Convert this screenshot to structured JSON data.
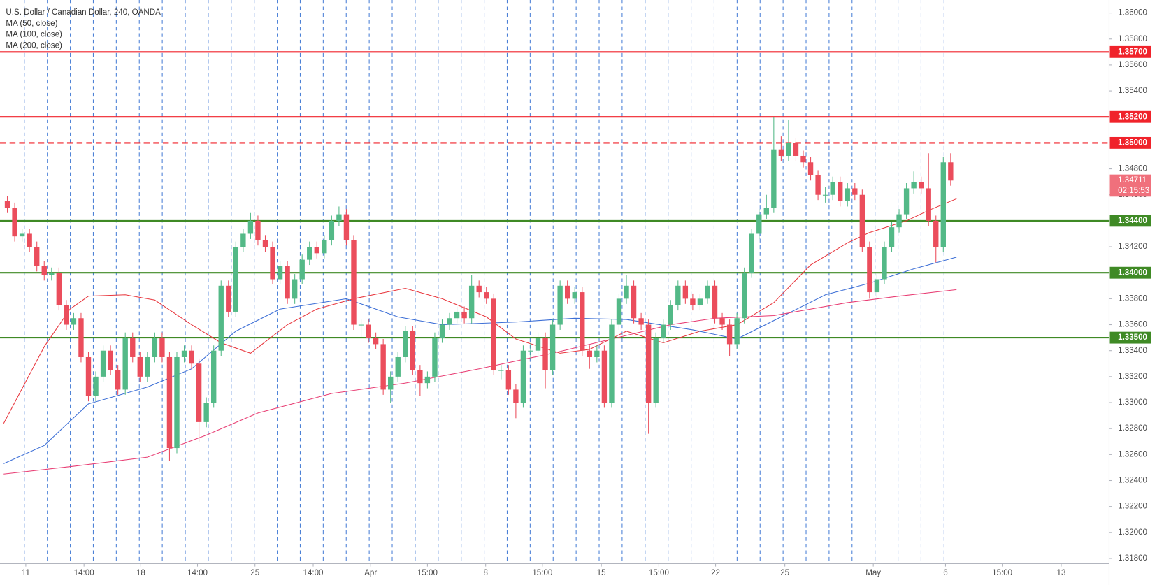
{
  "chart_data": {
    "type": "candlestick",
    "title": "U.S. Dollar / Canadian Dollar, 240, OANDA",
    "up_color": "#53b987",
    "down_color": "#eb4d5c",
    "xlim": [
      -1,
      149.5
    ],
    "ylim": [
      1.3176,
      1.361
    ],
    "xticks": [
      {
        "value": 2.5,
        "label": "11"
      },
      {
        "value": 10.4,
        "label": "14:00"
      },
      {
        "value": 18.1,
        "label": "18"
      },
      {
        "value": 25.8,
        "label": "14:00"
      },
      {
        "value": 33.6,
        "label": "25"
      },
      {
        "value": 41.5,
        "label": "14:00"
      },
      {
        "value": 49.3,
        "label": "Apr"
      },
      {
        "value": 57.0,
        "label": "15:00"
      },
      {
        "value": 64.9,
        "label": "8"
      },
      {
        "value": 72.6,
        "label": "15:00"
      },
      {
        "value": 80.6,
        "label": "15"
      },
      {
        "value": 88.4,
        "label": "15:00"
      },
      {
        "value": 96.1,
        "label": "22"
      },
      {
        "value": 105.5,
        "label": "25"
      },
      {
        "value": 117.5,
        "label": "May"
      },
      {
        "value": 127.3,
        "label": "6"
      },
      {
        "value": 135,
        "label": "15:00"
      },
      {
        "value": 143,
        "label": "13"
      }
    ],
    "yticks": [
      {
        "value": 1.318,
        "label": "1.31800"
      },
      {
        "value": 1.32,
        "label": "1.32000"
      },
      {
        "value": 1.322,
        "label": "1.32200"
      },
      {
        "value": 1.324,
        "label": "1.32400"
      },
      {
        "value": 1.326,
        "label": "1.32600"
      },
      {
        "value": 1.328,
        "label": "1.32800"
      },
      {
        "value": 1.33,
        "label": "1.33000"
      },
      {
        "value": 1.332,
        "label": "1.33200"
      },
      {
        "value": 1.334,
        "label": "1.33400"
      },
      {
        "value": 1.336,
        "label": "1.33600"
      },
      {
        "value": 1.338,
        "label": "1.33800"
      },
      {
        "value": 1.34,
        "label": "1.34000"
      },
      {
        "value": 1.342,
        "label": "1.34200"
      },
      {
        "value": 1.344,
        "label": "1.34400"
      },
      {
        "value": 1.346,
        "label": "1.34600"
      },
      {
        "value": 1.348,
        "label": "1.34800"
      },
      {
        "value": 1.35,
        "label": "1.35000"
      },
      {
        "value": 1.352,
        "label": "1.35200"
      },
      {
        "value": 1.354,
        "label": "1.35400"
      },
      {
        "value": 1.356,
        "label": "1.35600"
      },
      {
        "value": 1.358,
        "label": "1.35800"
      },
      {
        "value": 1.36,
        "label": "1.36000"
      }
    ],
    "candles": {
      "open": [
        1.3455,
        1.345,
        1.3428,
        1.343,
        1.342,
        1.3405,
        1.3398,
        1.34,
        1.3375,
        1.336,
        1.3365,
        1.3335,
        1.3305,
        1.332,
        1.334,
        1.3325,
        1.331,
        1.335,
        1.3335,
        1.332,
        1.3335,
        1.335,
        1.3335,
        1.3265,
        1.3335,
        1.334,
        1.333,
        1.3285,
        1.33,
        1.334,
        1.339,
        1.337,
        1.342,
        1.343,
        1.344,
        1.3425,
        1.342,
        1.3395,
        1.3405,
        1.338,
        1.3395,
        1.341,
        1.342,
        1.3415,
        1.3425,
        1.344,
        1.3445,
        1.3425,
        1.336,
        1.336,
        1.335,
        1.3345,
        1.331,
        1.332,
        1.3335,
        1.3355,
        1.3325,
        1.3315,
        1.332,
        1.335,
        1.336,
        1.3365,
        1.337,
        1.3365,
        1.339,
        1.3385,
        1.338,
        1.3325,
        1.3325,
        1.331,
        1.33,
        1.334,
        1.334,
        1.335,
        1.3325,
        1.336,
        1.339,
        1.338,
        1.3385,
        1.334,
        1.3335,
        1.334,
        1.33,
        1.336,
        1.338,
        1.339,
        1.3365,
        1.336,
        1.33,
        1.335,
        1.336,
        1.3375,
        1.339,
        1.338,
        1.3375,
        1.338,
        1.339,
        1.3365,
        1.336,
        1.3345,
        1.3365,
        1.34,
        1.343,
        1.3445,
        1.345,
        1.3495,
        1.349,
        1.35,
        1.349,
        1.3485,
        1.3475,
        1.346,
        1.346,
        1.347,
        1.3455,
        1.3465,
        1.346,
        1.342,
        1.3385,
        1.3395,
        1.342,
        1.3435,
        1.3445,
        1.3465,
        1.347,
        1.3465,
        1.344,
        1.342,
        1.3485
      ],
      "high": [
        1.3459,
        1.3454,
        1.3434,
        1.3434,
        1.3424,
        1.3409,
        1.3404,
        1.3404,
        1.3379,
        1.3369,
        1.3369,
        1.3339,
        1.3324,
        1.3344,
        1.3344,
        1.3329,
        1.3354,
        1.3354,
        1.3339,
        1.3339,
        1.3354,
        1.3354,
        1.3339,
        1.3339,
        1.3344,
        1.3344,
        1.3334,
        1.3304,
        1.3344,
        1.3394,
        1.3394,
        1.3424,
        1.3434,
        1.3446,
        1.3444,
        1.3429,
        1.3424,
        1.3409,
        1.3409,
        1.3399,
        1.3414,
        1.3424,
        1.3424,
        1.3429,
        1.3444,
        1.3451,
        1.3449,
        1.3429,
        1.3364,
        1.3364,
        1.3354,
        1.3349,
        1.3324,
        1.3339,
        1.3359,
        1.3359,
        1.3329,
        1.3324,
        1.3354,
        1.3364,
        1.3369,
        1.3374,
        1.3374,
        1.3398,
        1.3394,
        1.3389,
        1.3384,
        1.3329,
        1.3329,
        1.3314,
        1.3344,
        1.3346,
        1.3354,
        1.3354,
        1.3364,
        1.3394,
        1.3394,
        1.3389,
        1.3389,
        1.3344,
        1.3344,
        1.3344,
        1.3364,
        1.3384,
        1.3398,
        1.3394,
        1.3369,
        1.3364,
        1.3354,
        1.3364,
        1.3379,
        1.3394,
        1.3394,
        1.3384,
        1.3384,
        1.3394,
        1.3394,
        1.3369,
        1.3364,
        1.3369,
        1.3404,
        1.3434,
        1.3449,
        1.346,
        1.352,
        1.3505,
        1.3518,
        1.3504,
        1.3494,
        1.3489,
        1.3479,
        1.3466,
        1.3474,
        1.3474,
        1.3469,
        1.3469,
        1.3464,
        1.3424,
        1.3399,
        1.3424,
        1.3439,
        1.3449,
        1.3469,
        1.3478,
        1.3474,
        1.3492,
        1.3444,
        1.3489,
        1.3492
      ],
      "low": [
        1.3446,
        1.3424,
        1.3424,
        1.3416,
        1.3401,
        1.3394,
        1.3394,
        1.3371,
        1.3356,
        1.3356,
        1.3331,
        1.3301,
        1.3301,
        1.3316,
        1.3321,
        1.3306,
        1.3306,
        1.3331,
        1.3316,
        1.3316,
        1.3331,
        1.3331,
        1.3255,
        1.3261,
        1.3331,
        1.3326,
        1.327,
        1.3281,
        1.3296,
        1.3336,
        1.3366,
        1.3366,
        1.3416,
        1.3426,
        1.3421,
        1.3416,
        1.3391,
        1.3391,
        1.3376,
        1.3376,
        1.3391,
        1.3406,
        1.3411,
        1.3411,
        1.3421,
        1.3436,
        1.3421,
        1.3356,
        1.335,
        1.3346,
        1.3341,
        1.3306,
        1.33,
        1.3316,
        1.3331,
        1.3321,
        1.3305,
        1.3311,
        1.3316,
        1.3346,
        1.3356,
        1.3361,
        1.3361,
        1.3361,
        1.3381,
        1.3376,
        1.3321,
        1.3318,
        1.3306,
        1.3288,
        1.3296,
        1.3334,
        1.3336,
        1.3311,
        1.3321,
        1.3356,
        1.3376,
        1.3376,
        1.3336,
        1.3326,
        1.3331,
        1.3296,
        1.3296,
        1.3356,
        1.3376,
        1.3361,
        1.3356,
        1.3276,
        1.3296,
        1.3346,
        1.3356,
        1.3371,
        1.3376,
        1.3371,
        1.3371,
        1.3376,
        1.3361,
        1.3356,
        1.3336,
        1.3341,
        1.3361,
        1.3396,
        1.3426,
        1.3441,
        1.3446,
        1.3486,
        1.3486,
        1.3486,
        1.3481,
        1.3471,
        1.3456,
        1.3454,
        1.3456,
        1.3451,
        1.3451,
        1.3456,
        1.3416,
        1.338,
        1.3381,
        1.3391,
        1.3416,
        1.3431,
        1.3441,
        1.3461,
        1.3461,
        1.3436,
        1.3408,
        1.3416,
        1.3467
      ],
      "close": [
        1.345,
        1.3428,
        1.343,
        1.342,
        1.3405,
        1.3398,
        1.34,
        1.3375,
        1.336,
        1.3365,
        1.3335,
        1.3305,
        1.332,
        1.334,
        1.3325,
        1.331,
        1.335,
        1.3335,
        1.332,
        1.3335,
        1.335,
        1.3335,
        1.3265,
        1.3335,
        1.334,
        1.333,
        1.3285,
        1.33,
        1.334,
        1.339,
        1.337,
        1.342,
        1.343,
        1.344,
        1.3425,
        1.342,
        1.3395,
        1.3405,
        1.338,
        1.3395,
        1.341,
        1.342,
        1.3415,
        1.3425,
        1.344,
        1.3445,
        1.3425,
        1.336,
        1.336,
        1.335,
        1.3345,
        1.331,
        1.332,
        1.3335,
        1.3355,
        1.3325,
        1.3315,
        1.332,
        1.335,
        1.336,
        1.3365,
        1.337,
        1.3365,
        1.339,
        1.3385,
        1.338,
        1.3325,
        1.3325,
        1.331,
        1.33,
        1.334,
        1.334,
        1.335,
        1.3325,
        1.336,
        1.339,
        1.338,
        1.3385,
        1.334,
        1.3335,
        1.334,
        1.33,
        1.336,
        1.338,
        1.339,
        1.3365,
        1.336,
        1.33,
        1.335,
        1.336,
        1.3375,
        1.339,
        1.338,
        1.3375,
        1.338,
        1.339,
        1.3365,
        1.336,
        1.3345,
        1.3365,
        1.34,
        1.343,
        1.3445,
        1.345,
        1.3495,
        1.349,
        1.35,
        1.349,
        1.3485,
        1.3475,
        1.346,
        1.346,
        1.347,
        1.3455,
        1.3465,
        1.346,
        1.342,
        1.3385,
        1.3395,
        1.342,
        1.3435,
        1.3445,
        1.3465,
        1.347,
        1.3465,
        1.344,
        1.342,
        1.3485,
        1.3471
      ]
    },
    "series": [
      {
        "name": "MA (50, close)",
        "color": "#e8363d",
        "x": [
          -0.5,
          5,
          8.5,
          11,
          16,
          20,
          25,
          29,
          33,
          38,
          42,
          47,
          54,
          59,
          65,
          69,
          75,
          79,
          84,
          89,
          94,
          99,
          104,
          109,
          114,
          117,
          122,
          125,
          128.8
        ],
        "values": [
          1.3284,
          1.3343,
          1.3372,
          1.3382,
          1.3383,
          1.3379,
          1.336,
          1.3346,
          1.3338,
          1.336,
          1.3372,
          1.338,
          1.3388,
          1.338,
          1.3366,
          1.3349,
          1.3338,
          1.3341,
          1.3355,
          1.3346,
          1.3355,
          1.336,
          1.3377,
          1.3406,
          1.3423,
          1.3431,
          1.344,
          1.3448,
          1.3457
        ]
      },
      {
        "name": "MA (100, close)",
        "color": "#3d6fd6",
        "x": [
          -0.5,
          5,
          11,
          19,
          25,
          31,
          37,
          46,
          53,
          59,
          69,
          77,
          84,
          93,
          99,
          105,
          111,
          117,
          123,
          128.8
        ],
        "values": [
          1.3253,
          1.3267,
          1.3299,
          1.3312,
          1.3326,
          1.3355,
          1.3372,
          1.338,
          1.3366,
          1.336,
          1.3362,
          1.3365,
          1.3364,
          1.3356,
          1.3349,
          1.3366,
          1.3383,
          1.3392,
          1.3403,
          1.3412
        ]
      },
      {
        "name": "MA (200, close)",
        "color": "#e83e74",
        "x": [
          -0.5,
          9,
          19,
          27,
          34,
          44,
          54,
          64,
          74,
          82,
          90,
          96,
          104,
          114,
          121,
          128.8
        ],
        "values": [
          1.3245,
          1.3251,
          1.3258,
          1.3275,
          1.3292,
          1.3307,
          1.3315,
          1.3326,
          1.3338,
          1.3349,
          1.336,
          1.3365,
          1.3367,
          1.3377,
          1.3382,
          1.3387
        ]
      }
    ],
    "levels": [
      {
        "value": 1.357,
        "label": "1.35700",
        "color": "#f0232b",
        "style": "solid"
      },
      {
        "value": 1.352,
        "label": "1.35200",
        "color": "#f0232b",
        "style": "solid"
      },
      {
        "value": 1.35,
        "label": "1.35000",
        "color": "#f0232b",
        "style": "dashed"
      },
      {
        "value": 1.344,
        "label": "1.34400",
        "color": "#3f8a25",
        "style": "solid"
      },
      {
        "value": 1.34,
        "label": "1.34000",
        "color": "#3f8a25",
        "style": "solid"
      },
      {
        "value": 1.335,
        "label": "1.33500",
        "color": "#3f8a25",
        "style": "solid"
      }
    ],
    "last_price": {
      "value": 1.34711,
      "label": "1.34711",
      "countdown": "02:15:53",
      "color": "#f0707c"
    }
  }
}
